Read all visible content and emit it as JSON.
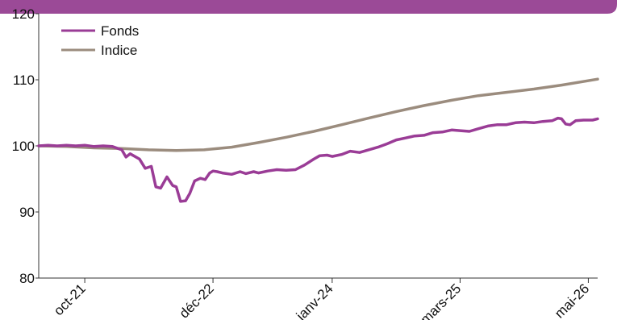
{
  "colors": {
    "header_bar": "#9b4a97",
    "fonds": "#9a3c96",
    "indice": "#9b8c7e",
    "axis": "#333333"
  },
  "chart_data": {
    "type": "line",
    "title": "",
    "xlabel": "",
    "ylabel": "",
    "ylim": [
      80,
      120
    ],
    "yticks": [
      80,
      90,
      100,
      110,
      120
    ],
    "xlim": [
      "2021-05-01",
      "2026-06-01"
    ],
    "xticks": [
      {
        "date": "2021-10-01",
        "label": "oct-21"
      },
      {
        "date": "2022-12-01",
        "label": "déc-22"
      },
      {
        "date": "2024-01-01",
        "label": "janv-24"
      },
      {
        "date": "2025-03-01",
        "label": "mars-25"
      },
      {
        "date": "2026-05-01",
        "label": "mai-26"
      }
    ],
    "grid": false,
    "legend_position": "top-left",
    "series": [
      {
        "name": "Fonds",
        "color_key": "fonds",
        "points": [
          [
            "2021-05-01",
            100
          ],
          [
            "2021-06-01",
            100.1
          ],
          [
            "2021-07-01",
            100
          ],
          [
            "2021-08-01",
            100.1
          ],
          [
            "2021-09-01",
            100
          ],
          [
            "2021-10-01",
            100.1
          ],
          [
            "2021-11-01",
            99.9
          ],
          [
            "2021-12-01",
            100
          ],
          [
            "2022-01-01",
            99.9
          ],
          [
            "2022-02-01",
            99.4
          ],
          [
            "2022-02-15",
            98.3
          ],
          [
            "2022-03-01",
            98.8
          ],
          [
            "2022-04-01",
            98
          ],
          [
            "2022-04-20",
            96.6
          ],
          [
            "2022-05-10",
            96.9
          ],
          [
            "2022-05-25",
            93.8
          ],
          [
            "2022-06-10",
            93.6
          ],
          [
            "2022-07-01",
            95.3
          ],
          [
            "2022-07-20",
            94
          ],
          [
            "2022-08-01",
            93.8
          ],
          [
            "2022-08-15",
            91.6
          ],
          [
            "2022-09-01",
            91.7
          ],
          [
            "2022-09-15",
            92.8
          ],
          [
            "2022-10-01",
            94.7
          ],
          [
            "2022-10-20",
            95.1
          ],
          [
            "2022-11-05",
            94.9
          ],
          [
            "2022-11-20",
            95.9
          ],
          [
            "2022-12-01",
            96.2
          ],
          [
            "2022-12-15",
            96.1
          ],
          [
            "2023-01-01",
            95.9
          ],
          [
            "2023-02-01",
            95.7
          ],
          [
            "2023-03-01",
            96.1
          ],
          [
            "2023-03-20",
            95.8
          ],
          [
            "2023-04-15",
            96.1
          ],
          [
            "2023-05-01",
            95.9
          ],
          [
            "2023-06-01",
            96.2
          ],
          [
            "2023-07-01",
            96.4
          ],
          [
            "2023-08-01",
            96.3
          ],
          [
            "2023-09-01",
            96.4
          ],
          [
            "2023-10-01",
            97.1
          ],
          [
            "2023-11-01",
            98
          ],
          [
            "2023-11-20",
            98.5
          ],
          [
            "2023-12-15",
            98.6
          ],
          [
            "2024-01-01",
            98.4
          ],
          [
            "2024-02-01",
            98.7
          ],
          [
            "2024-03-01",
            99.2
          ],
          [
            "2024-04-01",
            99
          ],
          [
            "2024-05-01",
            99.4
          ],
          [
            "2024-06-01",
            99.8
          ],
          [
            "2024-07-01",
            100.3
          ],
          [
            "2024-08-01",
            100.9
          ],
          [
            "2024-09-01",
            101.2
          ],
          [
            "2024-10-01",
            101.5
          ],
          [
            "2024-11-01",
            101.6
          ],
          [
            "2024-12-01",
            102
          ],
          [
            "2025-01-01",
            102.1
          ],
          [
            "2025-02-01",
            102.4
          ],
          [
            "2025-03-01",
            102.3
          ],
          [
            "2025-04-01",
            102.2
          ],
          [
            "2025-05-01",
            102.6
          ],
          [
            "2025-06-01",
            103
          ],
          [
            "2025-07-01",
            103.2
          ],
          [
            "2025-08-01",
            103.2
          ],
          [
            "2025-09-01",
            103.5
          ],
          [
            "2025-10-01",
            103.6
          ],
          [
            "2025-11-01",
            103.5
          ],
          [
            "2025-12-01",
            103.7
          ],
          [
            "2026-01-01",
            103.8
          ],
          [
            "2026-01-20",
            104.2
          ],
          [
            "2026-02-01",
            104.1
          ],
          [
            "2026-02-15",
            103.3
          ],
          [
            "2026-03-01",
            103.2
          ],
          [
            "2026-03-20",
            103.8
          ],
          [
            "2026-04-15",
            103.9
          ],
          [
            "2026-05-15",
            103.9
          ],
          [
            "2026-06-01",
            104.1
          ]
        ]
      },
      {
        "name": "Indice",
        "color_key": "indice",
        "points": [
          [
            "2021-05-01",
            100
          ],
          [
            "2021-08-01",
            99.9
          ],
          [
            "2021-11-01",
            99.7
          ],
          [
            "2022-02-01",
            99.6
          ],
          [
            "2022-05-01",
            99.4
          ],
          [
            "2022-08-01",
            99.3
          ],
          [
            "2022-11-01",
            99.4
          ],
          [
            "2023-02-01",
            99.8
          ],
          [
            "2023-05-01",
            100.5
          ],
          [
            "2023-08-01",
            101.3
          ],
          [
            "2023-11-01",
            102.2
          ],
          [
            "2024-02-01",
            103.2
          ],
          [
            "2024-05-01",
            104.2
          ],
          [
            "2024-08-01",
            105.2
          ],
          [
            "2024-11-01",
            106.1
          ],
          [
            "2025-02-01",
            106.9
          ],
          [
            "2025-05-01",
            107.6
          ],
          [
            "2025-08-01",
            108.1
          ],
          [
            "2025-11-01",
            108.6
          ],
          [
            "2026-02-01",
            109.2
          ],
          [
            "2026-06-01",
            110.1
          ]
        ]
      }
    ]
  }
}
